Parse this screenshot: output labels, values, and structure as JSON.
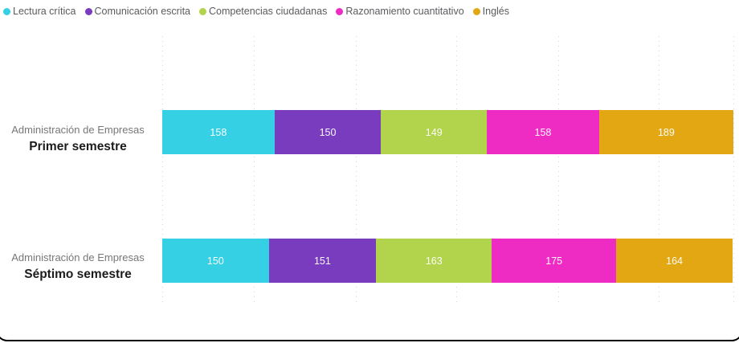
{
  "app": {
    "background_color": "#FFFFFF",
    "border_color": "#000000"
  },
  "legend": {
    "position": "top-left"
  },
  "chart_data": {
    "type": "bar",
    "orientation": "horizontal",
    "stacked": true,
    "title": "",
    "xlabel": "",
    "ylabel": "",
    "categories": [
      {
        "line1": "Administración de Empresas",
        "line2": "Primer semestre"
      },
      {
        "line1": "Administración de Empresas",
        "line2": "Séptimo semestre"
      }
    ],
    "series": [
      {
        "name": "Lectura crítica",
        "color": "#35D0E3",
        "values": [
          158,
          150
        ]
      },
      {
        "name": "Comunicación escrita",
        "color": "#7A3CBE",
        "values": [
          150,
          151
        ]
      },
      {
        "name": "Competencias ciudadanas",
        "color": "#B2D44D",
        "values": [
          149,
          163
        ]
      },
      {
        "name": "Razonamiento cuantitativo",
        "color": "#EE2BC3",
        "values": [
          158,
          175
        ]
      },
      {
        "name": "Inglés",
        "color": "#E2A713",
        "values": [
          189,
          164
        ]
      }
    ],
    "totals": [
      804,
      803
    ],
    "axis": {
      "min": 0,
      "max": 804,
      "gridlines": "dotted",
      "tick_labels_shown": false
    },
    "value_labels_shown": true,
    "value_label_color": "#FFFFFF",
    "legend_position": "top-left"
  }
}
